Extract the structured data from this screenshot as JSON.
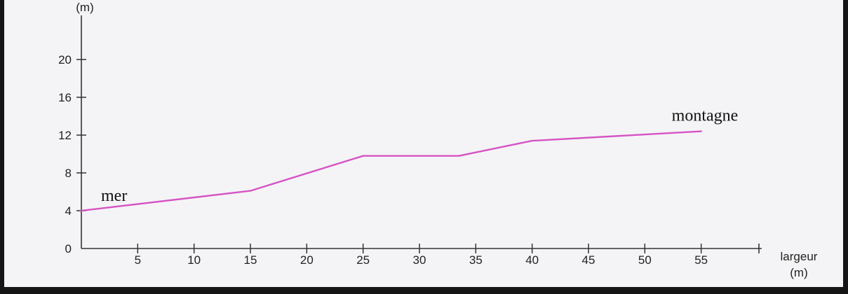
{
  "chart_data": {
    "type": "line",
    "title": "",
    "xlabel": "largeur",
    "xunit": "(m)",
    "ylabel": "",
    "yunit": "(m)",
    "xlim": [
      0,
      60
    ],
    "ylim": [
      0,
      24
    ],
    "xticks": [
      5,
      10,
      15,
      20,
      25,
      30,
      35,
      40,
      45,
      50,
      55
    ],
    "yticks": [
      0,
      4,
      8,
      12,
      16,
      20
    ],
    "series": [
      {
        "color": "#d653c4",
        "x": [
          0,
          15,
          25,
          33.5,
          40,
          55
        ],
        "y": [
          4,
          6.1,
          9.8,
          9.8,
          11.4,
          12.4
        ]
      }
    ],
    "annotations": [
      {
        "text": "mer",
        "x": 0,
        "y": 4
      },
      {
        "text": "montagne",
        "x": 55,
        "y": 12.4
      }
    ],
    "grid": false,
    "legend": "none"
  }
}
